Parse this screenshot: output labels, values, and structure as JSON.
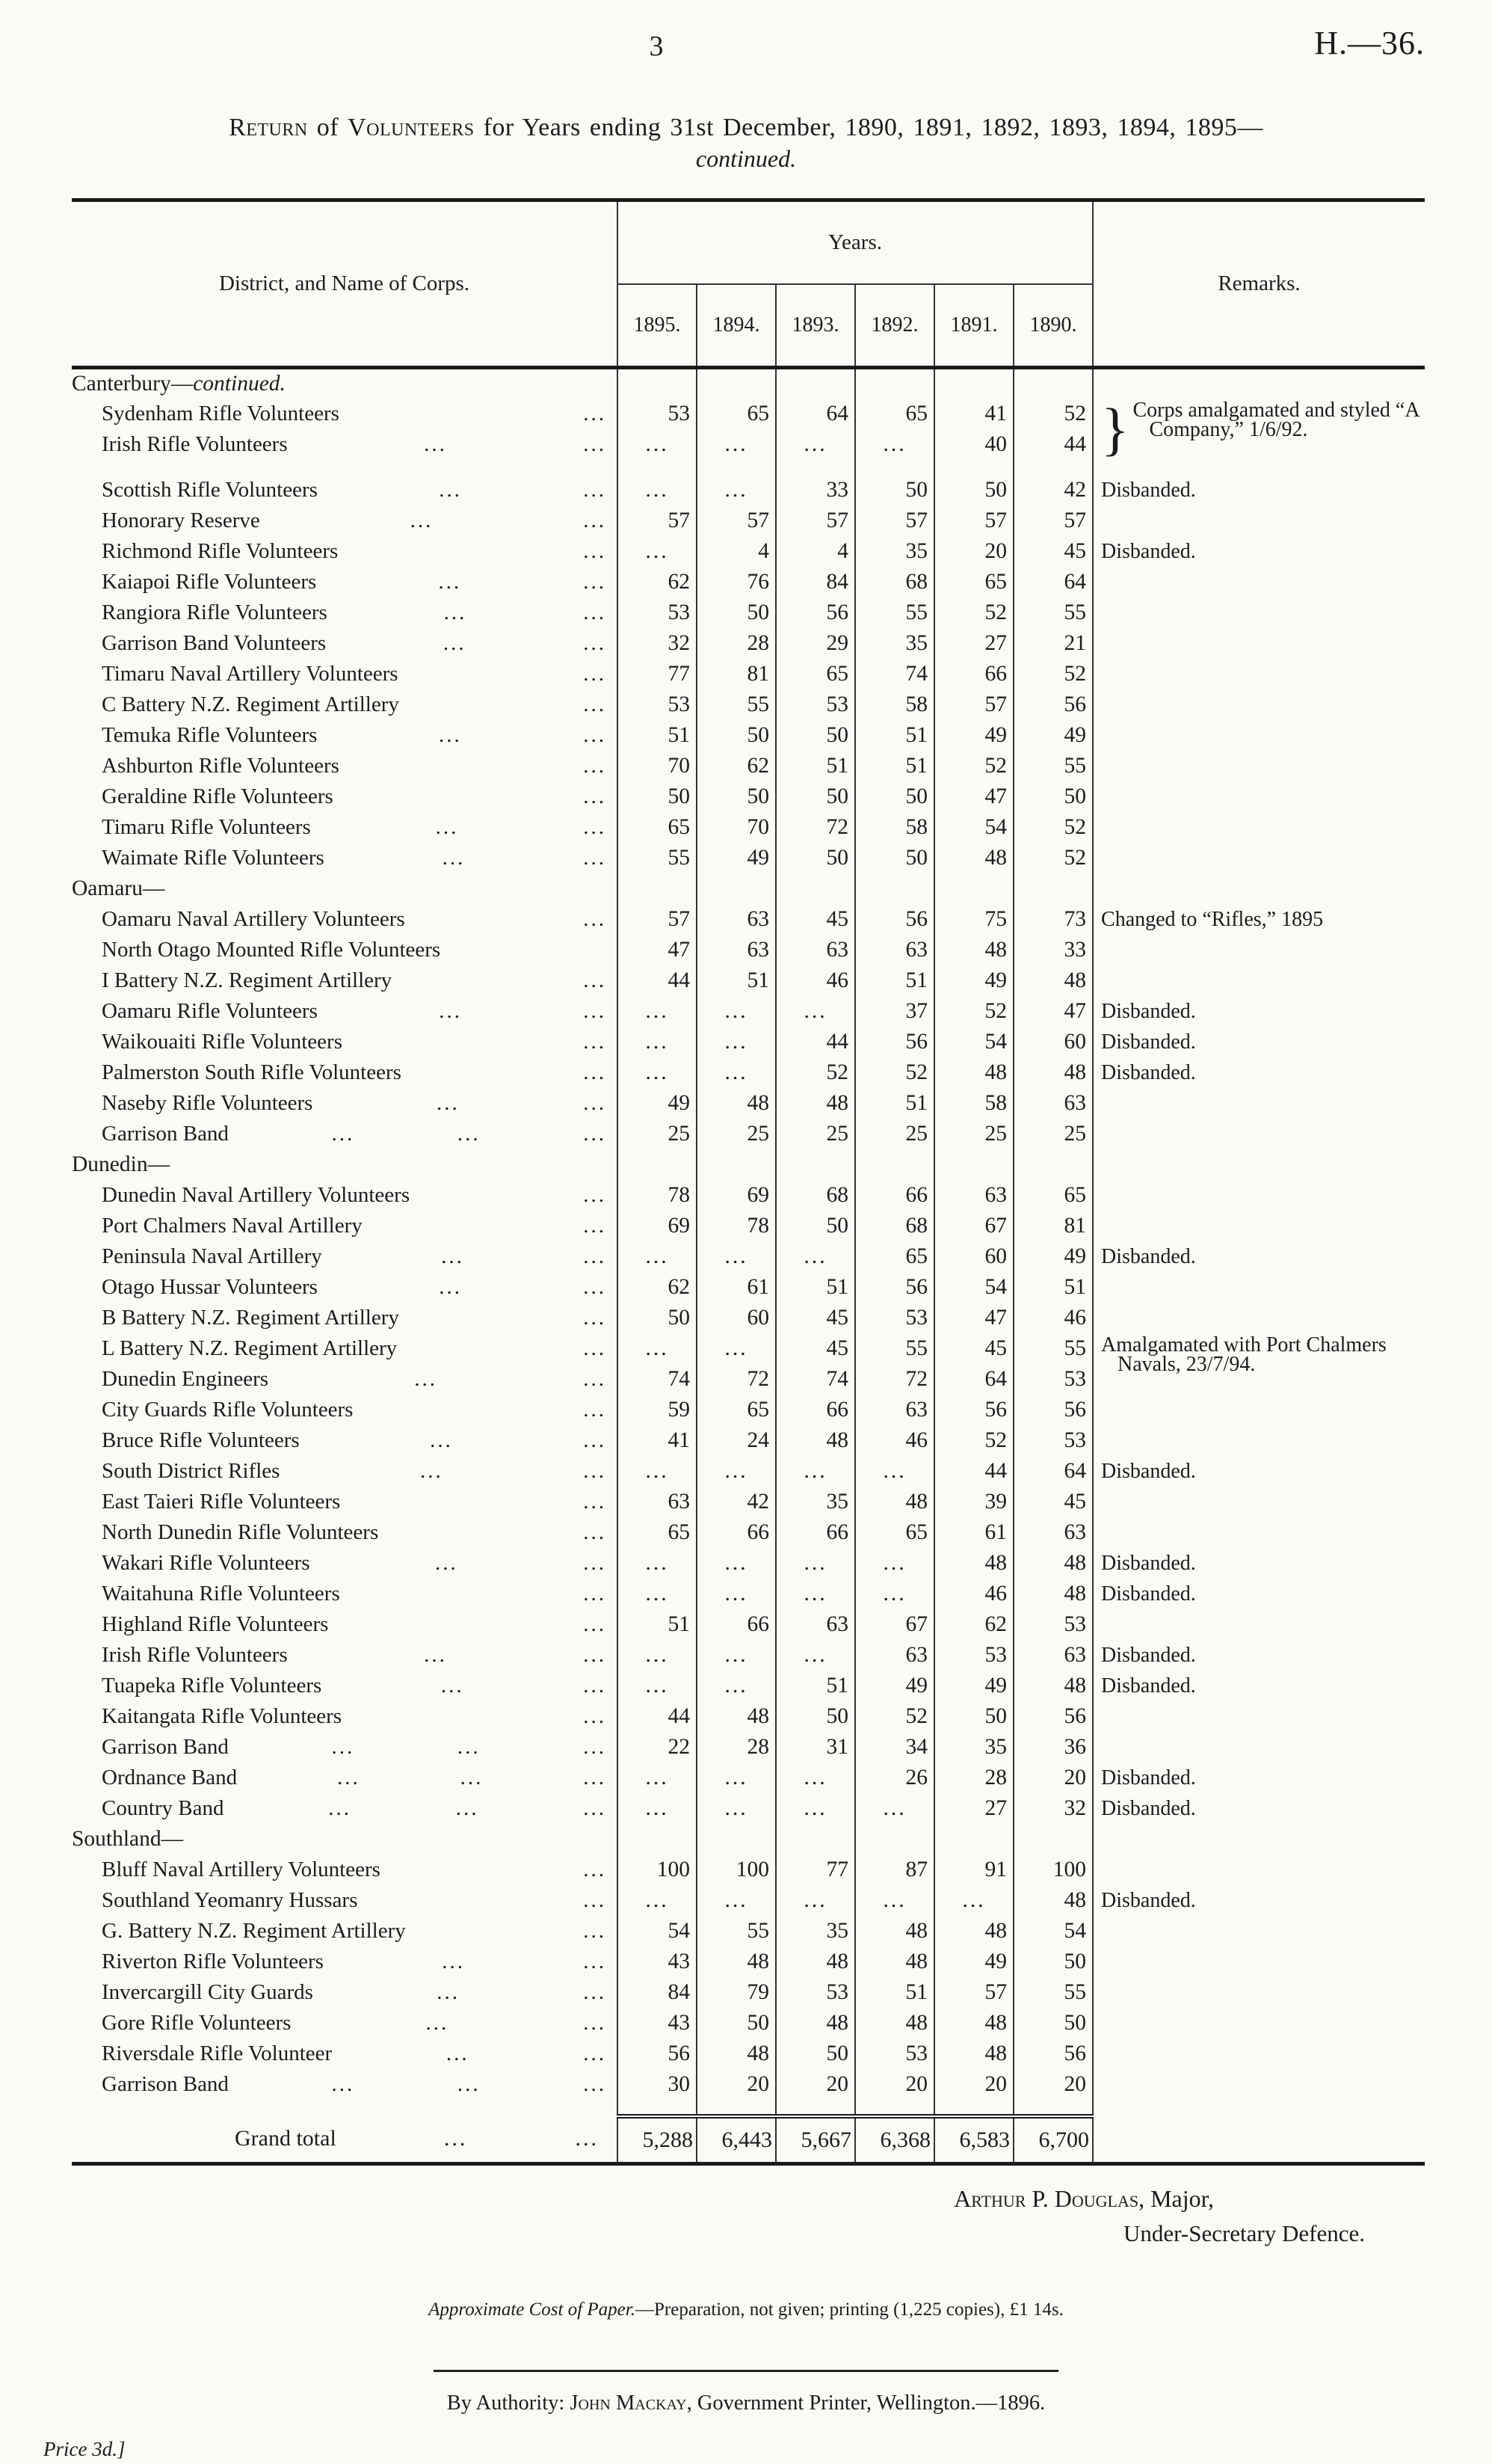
{
  "page": {
    "page_number": "3",
    "doc_ref": "H.—36.",
    "title": {
      "sc1": "Return",
      "mid1": " of ",
      "sc2": "Volunteers",
      "rest": " for Years ending 31st December, 1890, 1891, 1892, 1893, 1894, 1895—",
      "continued": "continued."
    }
  },
  "table": {
    "header": {
      "district": "District, and Name of Corps.",
      "years_group": "Years.",
      "years": [
        "1895.",
        "1894.",
        "1893.",
        "1892.",
        "1891.",
        "1890."
      ],
      "remarks": "Remarks."
    },
    "sections": [
      {
        "label": "Canterbury—",
        "label_italic": "continued.",
        "rows": [
          {
            "name": "Sydenham Rifle Volunteers",
            "dots": 1,
            "values": [
              "53",
              "65",
              "64",
              "65",
              "41",
              "52"
            ],
            "remark": {
              "text": "Corps amalgamated and styled “A Company,” 1/6/92.",
              "rows": 2,
              "brace": true
            }
          },
          {
            "name": "Irish Rifle Volunteers",
            "dots": 2,
            "values": [
              "...",
              "...",
              "...",
              "...",
              "40",
              "44"
            ],
            "remark": "covered"
          },
          {
            "name": "Scottish Rifle Volunteers",
            "dots": 2,
            "values": [
              "...",
              "...",
              "33",
              "50",
              "50",
              "42"
            ],
            "remark": {
              "text": "Disbanded."
            },
            "gap": true
          },
          {
            "name": "Honorary Reserve",
            "dots": 2,
            "values": [
              "57",
              "57",
              "57",
              "57",
              "57",
              "57"
            ]
          },
          {
            "name": "Richmond Rifle Volunteers",
            "dots": 1,
            "values": [
              "...",
              "4",
              "4",
              "35",
              "20",
              "45"
            ],
            "remark": {
              "text": "Disbanded."
            }
          },
          {
            "name": "Kaiapoi Rifle Volunteers",
            "dots": 2,
            "values": [
              "62",
              "76",
              "84",
              "68",
              "65",
              "64"
            ]
          },
          {
            "name": "Rangiora Rifle Volunteers",
            "dots": 2,
            "values": [
              "53",
              "50",
              "56",
              "55",
              "52",
              "55"
            ]
          },
          {
            "name": "Garrison Band Volunteers",
            "dots": 2,
            "values": [
              "32",
              "28",
              "29",
              "35",
              "27",
              "21"
            ]
          },
          {
            "name": "Timaru Naval Artillery Volunteers",
            "dots": 1,
            "values": [
              "77",
              "81",
              "65",
              "74",
              "66",
              "52"
            ]
          },
          {
            "name": "C Battery N.Z. Regiment Artillery",
            "dots": 1,
            "values": [
              "53",
              "55",
              "53",
              "58",
              "57",
              "56"
            ]
          },
          {
            "name": "Temuka Rifle Volunteers",
            "dots": 2,
            "values": [
              "51",
              "50",
              "50",
              "51",
              "49",
              "49"
            ]
          },
          {
            "name": "Ashburton Rifle Volunteers",
            "dots": 1,
            "values": [
              "70",
              "62",
              "51",
              "51",
              "52",
              "55"
            ]
          },
          {
            "name": "Geraldine Rifle Volunteers",
            "dots": 1,
            "values": [
              "50",
              "50",
              "50",
              "50",
              "47",
              "50"
            ]
          },
          {
            "name": "Timaru Rifle Volunteers",
            "dots": 2,
            "values": [
              "65",
              "70",
              "72",
              "58",
              "54",
              "52"
            ]
          },
          {
            "name": "Waimate Rifle Volunteers",
            "dots": 2,
            "values": [
              "55",
              "49",
              "50",
              "50",
              "48",
              "52"
            ]
          }
        ]
      },
      {
        "label": "Oamaru—",
        "rows": [
          {
            "name": "Oamaru Naval Artillery Volunteers",
            "dots": 1,
            "values": [
              "57",
              "63",
              "45",
              "56",
              "75",
              "73"
            ],
            "remark": {
              "text": "Changed to “Rifles,” 1895"
            }
          },
          {
            "name": "North Otago Mounted Rifle Volunteers",
            "dots": 0,
            "values": [
              "47",
              "63",
              "63",
              "63",
              "48",
              "33"
            ]
          },
          {
            "name": "I Battery N.Z. Regiment Artillery",
            "dots": 1,
            "values": [
              "44",
              "51",
              "46",
              "51",
              "49",
              "48"
            ]
          },
          {
            "name": "Oamaru Rifle Volunteers",
            "dots": 2,
            "values": [
              "...",
              "...",
              "...",
              "37",
              "52",
              "47"
            ],
            "remark": {
              "text": "Disbanded."
            }
          },
          {
            "name": "Waikouaiti Rifle Volunteers",
            "dots": 1,
            "values": [
              "...",
              "...",
              "44",
              "56",
              "54",
              "60"
            ],
            "remark": {
              "text": "Disbanded."
            }
          },
          {
            "name": "Palmerston South Rifle Volunteers",
            "dots": 1,
            "values": [
              "...",
              "...",
              "52",
              "52",
              "48",
              "48"
            ],
            "remark": {
              "text": "Disbanded."
            }
          },
          {
            "name": "Naseby Rifle Volunteers",
            "dots": 2,
            "values": [
              "49",
              "48",
              "48",
              "51",
              "58",
              "63"
            ]
          },
          {
            "name": "Garrison Band",
            "dots": 3,
            "values": [
              "25",
              "25",
              "25",
              "25",
              "25",
              "25"
            ]
          }
        ]
      },
      {
        "label": "Dunedin—",
        "rows": [
          {
            "name": "Dunedin Naval Artillery Volunteers",
            "dots": 1,
            "values": [
              "78",
              "69",
              "68",
              "66",
              "63",
              "65"
            ]
          },
          {
            "name": "Port Chalmers Naval Artillery",
            "dots": 1,
            "values": [
              "69",
              "78",
              "50",
              "68",
              "67",
              "81"
            ]
          },
          {
            "name": "Peninsula Naval Artillery",
            "dots": 2,
            "values": [
              "...",
              "...",
              "...",
              "65",
              "60",
              "49"
            ],
            "remark": {
              "text": "Disbanded."
            }
          },
          {
            "name": "Otago Hussar Volunteers",
            "dots": 2,
            "values": [
              "62",
              "61",
              "51",
              "56",
              "54",
              "51"
            ]
          },
          {
            "name": "B Battery N.Z. Regiment Artillery",
            "dots": 1,
            "values": [
              "50",
              "60",
              "45",
              "53",
              "47",
              "46"
            ]
          },
          {
            "name": "L Battery N.Z. Regiment Artillery",
            "dots": 1,
            "values": [
              "...",
              "...",
              "45",
              "55",
              "45",
              "55"
            ],
            "remark": {
              "text": "Amalgamated with Port Chalmers Navals, 23/7/94.",
              "rows": 3
            }
          },
          {
            "name": "Dunedin Engineers",
            "dots": 2,
            "values": [
              "74",
              "72",
              "74",
              "72",
              "64",
              "53"
            ],
            "remark": "covered"
          },
          {
            "name": "City Guards Rifle Volunteers",
            "dots": 1,
            "values": [
              "59",
              "65",
              "66",
              "63",
              "56",
              "56"
            ],
            "remark": "covered"
          },
          {
            "name": "Bruce Rifle Volunteers",
            "dots": 2,
            "values": [
              "41",
              "24",
              "48",
              "46",
              "52",
              "53"
            ]
          },
          {
            "name": "South District Rifles",
            "dots": 2,
            "values": [
              "...",
              "...",
              "...",
              "...",
              "44",
              "64"
            ],
            "remark": {
              "text": "Disbanded."
            }
          },
          {
            "name": "East Taieri Rifle Volunteers",
            "dots": 1,
            "values": [
              "63",
              "42",
              "35",
              "48",
              "39",
              "45"
            ]
          },
          {
            "name": "North Dunedin Rifle Volunteers",
            "dots": 1,
            "values": [
              "65",
              "66",
              "66",
              "65",
              "61",
              "63"
            ]
          },
          {
            "name": "Wakari Rifle Volunteers",
            "dots": 2,
            "values": [
              "...",
              "...",
              "...",
              "...",
              "48",
              "48"
            ],
            "remark": {
              "text": "Disbanded."
            }
          },
          {
            "name": "Waitahuna Rifle Volunteers",
            "dots": 1,
            "values": [
              "...",
              "...",
              "...",
              "...",
              "46",
              "48"
            ],
            "remark": {
              "text": "Disbanded."
            }
          },
          {
            "name": "Highland Rifle Volunteers",
            "dots": 1,
            "values": [
              "51",
              "66",
              "63",
              "67",
              "62",
              "53"
            ]
          },
          {
            "name": "Irish Rifle Volunteers",
            "dots": 2,
            "values": [
              "...",
              "...",
              "...",
              "63",
              "53",
              "63"
            ],
            "remark": {
              "text": "Disbanded."
            }
          },
          {
            "name": "Tuapeka Rifle Volunteers",
            "dots": 2,
            "values": [
              "...",
              "...",
              "51",
              "49",
              "49",
              "48"
            ],
            "remark": {
              "text": "Disbanded."
            }
          },
          {
            "name": "Kaitangata Rifle Volunteers",
            "dots": 1,
            "values": [
              "44",
              "48",
              "50",
              "52",
              "50",
              "56"
            ]
          },
          {
            "name": "Garrison Band",
            "dots": 3,
            "values": [
              "22",
              "28",
              "31",
              "34",
              "35",
              "36"
            ]
          },
          {
            "name": "Ordnance Band",
            "dots": 3,
            "values": [
              "...",
              "...",
              "...",
              "26",
              "28",
              "20"
            ],
            "remark": {
              "text": "Disbanded."
            }
          },
          {
            "name": "Country Band",
            "dots": 3,
            "values": [
              "...",
              "...",
              "...",
              "...",
              "27",
              "32"
            ],
            "remark": {
              "text": "Disbanded."
            }
          }
        ]
      },
      {
        "label": "Southland—",
        "rows": [
          {
            "name": "Bluff Naval Artillery Volunteers",
            "dots": 1,
            "values": [
              "100",
              "100",
              "77",
              "87",
              "91",
              "100"
            ]
          },
          {
            "name": "Southland Yeomanry Hussars",
            "dots": 1,
            "values": [
              "...",
              "...",
              "...",
              "...",
              "...",
              "48"
            ],
            "remark": {
              "text": "Disbanded."
            }
          },
          {
            "name": "G. Battery N.Z. Regiment Artillery",
            "dots": 1,
            "values": [
              "54",
              "55",
              "35",
              "48",
              "48",
              "54"
            ]
          },
          {
            "name": "Riverton Rifle Volunteers",
            "dots": 2,
            "values": [
              "43",
              "48",
              "48",
              "48",
              "49",
              "50"
            ]
          },
          {
            "name": "Invercargill City Guards",
            "dots": 2,
            "values": [
              "84",
              "79",
              "53",
              "51",
              "57",
              "55"
            ]
          },
          {
            "name": "Gore Rifle Volunteers",
            "dots": 2,
            "values": [
              "43",
              "50",
              "48",
              "48",
              "48",
              "50"
            ]
          },
          {
            "name": "Riversdale Rifle Volunteer",
            "dots": 2,
            "values": [
              "56",
              "48",
              "50",
              "53",
              "48",
              "56"
            ]
          },
          {
            "name": "Garrison Band",
            "dots": 3,
            "values": [
              "30",
              "20",
              "20",
              "20",
              "20",
              "20"
            ]
          }
        ]
      }
    ],
    "grand_total": {
      "label": "Grand total",
      "dots": 2,
      "values": [
        "5,288",
        "6,443",
        "5,667",
        "6,368",
        "6,583",
        "6,700"
      ]
    }
  },
  "footer": {
    "signature_name": "Arthur P. Douglas",
    "signature_suffix": ", Major,",
    "signature_line2": "Under-Secretary Defence.",
    "cost_italic": "Approximate Cost of Paper.",
    "cost_rest": "—Preparation, not given; printing (1,225 copies), £1 14s.",
    "authority_prefix": "By Authority: ",
    "authority_name": "John Mackay",
    "authority_rest": ", Government Printer, Wellington.—1896.",
    "price": "Price 3d.]"
  }
}
